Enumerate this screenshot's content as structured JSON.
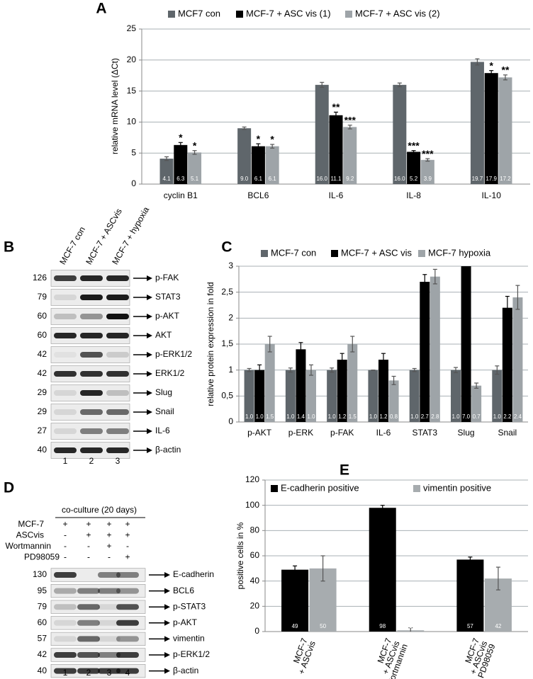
{
  "chart_data": [
    {
      "type": "bar",
      "panel": "A",
      "y_label": "relative mRNA level  (ΔCt)",
      "legend": "top",
      "categories": [
        "cyclin B1",
        "BCL6",
        "IL-6",
        "IL-8",
        "IL-10"
      ],
      "ylim": [
        0,
        25
      ],
      "yticks": [
        0,
        5,
        10,
        15,
        20,
        25
      ],
      "grid": true,
      "series": [
        {
          "name": "MCF7 con",
          "color": "#5f666b",
          "values": [
            4.1,
            9.0,
            16.0,
            16.0,
            19.7
          ],
          "value_labels": [
            "4.1",
            "9.0",
            "16.0",
            "16.0",
            "19.7"
          ],
          "errors": [
            0.3,
            0.2,
            0.4,
            0.3,
            0.5
          ]
        },
        {
          "name": "MCF-7 + ASC vis (1)",
          "color": "#000000",
          "values": [
            6.3,
            6.1,
            11.1,
            5.2,
            17.9
          ],
          "value_labels": [
            "6.3",
            "6.1",
            "11.1",
            "5.2",
            "17.9"
          ],
          "errors": [
            0.4,
            0.4,
            0.5,
            0.2,
            0.4
          ],
          "annotations": [
            "*",
            "*",
            "**",
            "***",
            "*"
          ]
        },
        {
          "name": "MCF-7 + ASC vis (2)",
          "color": "#9ea4a8",
          "values": [
            5.1,
            6.1,
            9.2,
            3.9,
            17.2
          ],
          "value_labels": [
            "5.1",
            "6.1",
            "9.2",
            "3.9",
            "17.2"
          ],
          "errors": [
            0.3,
            0.3,
            0.3,
            0.2,
            0.4
          ],
          "annotations": [
            "*",
            "*",
            "***",
            "***",
            "**"
          ]
        }
      ]
    },
    {
      "type": "bar",
      "panel": "C",
      "y_label": "relative protein expression in fold",
      "legend": "top",
      "categories": [
        "p-AKT",
        "p-ERK",
        "p-FAK",
        "IL-6",
        "STAT3",
        "Slug",
        "Snail"
      ],
      "ylim": [
        0,
        3
      ],
      "yticks": [
        0,
        {
          "value": 0.5,
          "label": "0,5"
        },
        1,
        {
          "value": 1.5,
          "label": "1,5"
        },
        2,
        {
          "value": 2.5,
          "label": "2,5"
        },
        3
      ],
      "grid": true,
      "series": [
        {
          "name": "MCF-7 con",
          "color": "#5f666b",
          "values": [
            1.0,
            1.0,
            1.0,
            1.0,
            1.0,
            1.0,
            1.0
          ],
          "value_labels": [
            "1.0",
            "1.0",
            "1.0",
            "1.0",
            "1.0",
            "1.0",
            "1.0"
          ],
          "errors": [
            0.03,
            0.04,
            0.04,
            0,
            0.03,
            0.05,
            0.08
          ]
        },
        {
          "name": "MCF-7 + ASC vis",
          "color": "#000000",
          "values": [
            1.0,
            1.4,
            1.2,
            1.2,
            2.7,
            7.0,
            2.2
          ],
          "value_labels": [
            "1.0",
            "1.4",
            "1.2",
            "1.2",
            "2.7",
            "7.0",
            "2.2"
          ],
          "errors": [
            0.1,
            0.13,
            0.12,
            0.12,
            0.14,
            0,
            0.22
          ]
        },
        {
          "name": "MCF-7 hypoxia",
          "color": "#9ea4a8",
          "values": [
            1.5,
            1.0,
            1.5,
            0.8,
            2.8,
            0.7,
            2.4
          ],
          "value_labels": [
            "1.5",
            "1.0",
            "1.5",
            "0.8",
            "2.8",
            "0.7",
            "2.4"
          ],
          "errors": [
            0.15,
            0.1,
            0.15,
            0.08,
            0.14,
            0.05,
            0.23
          ]
        }
      ]
    },
    {
      "type": "bar",
      "panel": "E",
      "y_label": "positive cells in %",
      "legend": "upper left",
      "categories": [
        [
          "MCF-7",
          "+ ASCvis"
        ],
        [
          "MCF-7",
          "+ ASCvis",
          "+ Wortmannin"
        ],
        [
          "MCF-7",
          "+ ASCvis",
          "+ PD98059"
        ]
      ],
      "ylim": [
        0,
        120
      ],
      "yticks": [
        0,
        20,
        40,
        60,
        80,
        100,
        120
      ],
      "grid": true,
      "series": [
        {
          "name": "E-cadherin positive",
          "color": "#000000",
          "values": [
            49,
            98,
            57
          ],
          "errors": [
            3,
            2,
            2
          ]
        },
        {
          "name": "vimentin positive",
          "color": "#a7acaf",
          "values": [
            50,
            1,
            42
          ],
          "errors": [
            10,
            2,
            9
          ]
        }
      ]
    }
  ],
  "blot_b": {
    "panel": "B",
    "lanes": [
      "MCF-7 con",
      "MCF-7 + ASCvis",
      "MCF-7 + hypoxia"
    ],
    "rows": [
      {
        "mw": 126,
        "protein": "p-FAK"
      },
      {
        "mw": 79,
        "protein": "STAT3"
      },
      {
        "mw": 60,
        "protein": "p-AKT"
      },
      {
        "mw": 60,
        "protein": "AKT"
      },
      {
        "mw": 42,
        "protein": "p-ERK1/2"
      },
      {
        "mw": 42,
        "protein": "ERK1/2"
      },
      {
        "mw": 29,
        "protein": "Slug"
      },
      {
        "mw": 29,
        "protein": "Snail"
      },
      {
        "mw": 27,
        "protein": "IL-6"
      },
      {
        "mw": 40,
        "protein": "β-actin"
      }
    ],
    "lane_numbers": [
      1,
      2,
      3
    ]
  },
  "blot_d": {
    "panel": "D",
    "header": "co-culture (20 days)",
    "treatments": [
      {
        "name": "MCF-7",
        "signs": [
          "+",
          "+",
          "+",
          "+"
        ]
      },
      {
        "name": "ASCvis",
        "signs": [
          "-",
          "+",
          "+",
          "+"
        ]
      },
      {
        "name": "Wortmannin",
        "signs": [
          "-",
          "-",
          "+",
          "-"
        ]
      },
      {
        "name": "PD98059",
        "signs": [
          "-",
          "-",
          "-",
          "+"
        ]
      }
    ],
    "rows": [
      {
        "mw": 130,
        "protein": "E-cadherin"
      },
      {
        "mw": 95,
        "protein": "BCL6"
      },
      {
        "mw": 79,
        "protein": "p-STAT3"
      },
      {
        "mw": 60,
        "protein": "p-AKT"
      },
      {
        "mw": 57,
        "protein": "vimentin"
      },
      {
        "mw": 42,
        "protein": "p-ERK1/2"
      },
      {
        "mw": 40,
        "protein": "β-actin"
      }
    ],
    "lane_numbers": [
      1,
      2,
      3,
      4
    ]
  }
}
